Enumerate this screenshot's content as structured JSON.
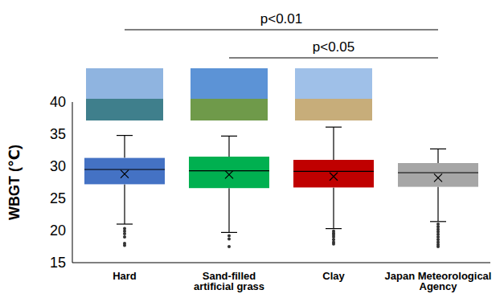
{
  "chart_data": {
    "type": "box",
    "ylabel": "WBGT (℃)",
    "categories": [
      "Hard",
      "Sand-filled artificial grass",
      "Clay",
      "Japan Meteorological Agency"
    ],
    "colors": [
      "#4472c4",
      "#00b050",
      "#c00000",
      "#a6a6a6"
    ],
    "boxes": [
      {
        "min": 21.0,
        "q1": 27.2,
        "median": 29.5,
        "q3": 31.3,
        "max": 34.8,
        "mean": 28.8,
        "outliers": [
          20.3,
          19.9,
          19.5,
          19.0,
          18.0,
          17.7
        ]
      },
      {
        "min": 19.7,
        "q1": 26.6,
        "median": 29.3,
        "q3": 31.5,
        "max": 34.7,
        "mean": 28.7,
        "outliers": [
          19.2,
          18.7,
          17.5
        ]
      },
      {
        "min": 20.3,
        "q1": 26.7,
        "median": 29.2,
        "q3": 31.0,
        "max": 36.1,
        "mean": 28.4,
        "outliers": [
          19.9,
          19.6,
          19.3,
          19.0,
          18.6,
          18.2,
          17.9
        ]
      },
      {
        "min": 21.4,
        "q1": 26.8,
        "median": 29.0,
        "q3": 30.5,
        "max": 32.7,
        "mean": 28.2,
        "outliers": [
          21.0,
          20.6,
          20.2,
          19.8,
          19.4,
          19.0,
          18.6,
          18.2,
          17.8,
          17.5
        ]
      }
    ],
    "ylim": [
      15,
      40
    ],
    "yticks": [
      15,
      20,
      25,
      30,
      35,
      40
    ],
    "grid": false,
    "annotations": [
      {
        "text": "p<0.01",
        "from": "Hard",
        "to": "Japan Meteorological Agency"
      },
      {
        "text": "p<0.05",
        "from": "Sand-filled artificial grass",
        "to": "Japan Meteorological Agency"
      }
    ]
  }
}
